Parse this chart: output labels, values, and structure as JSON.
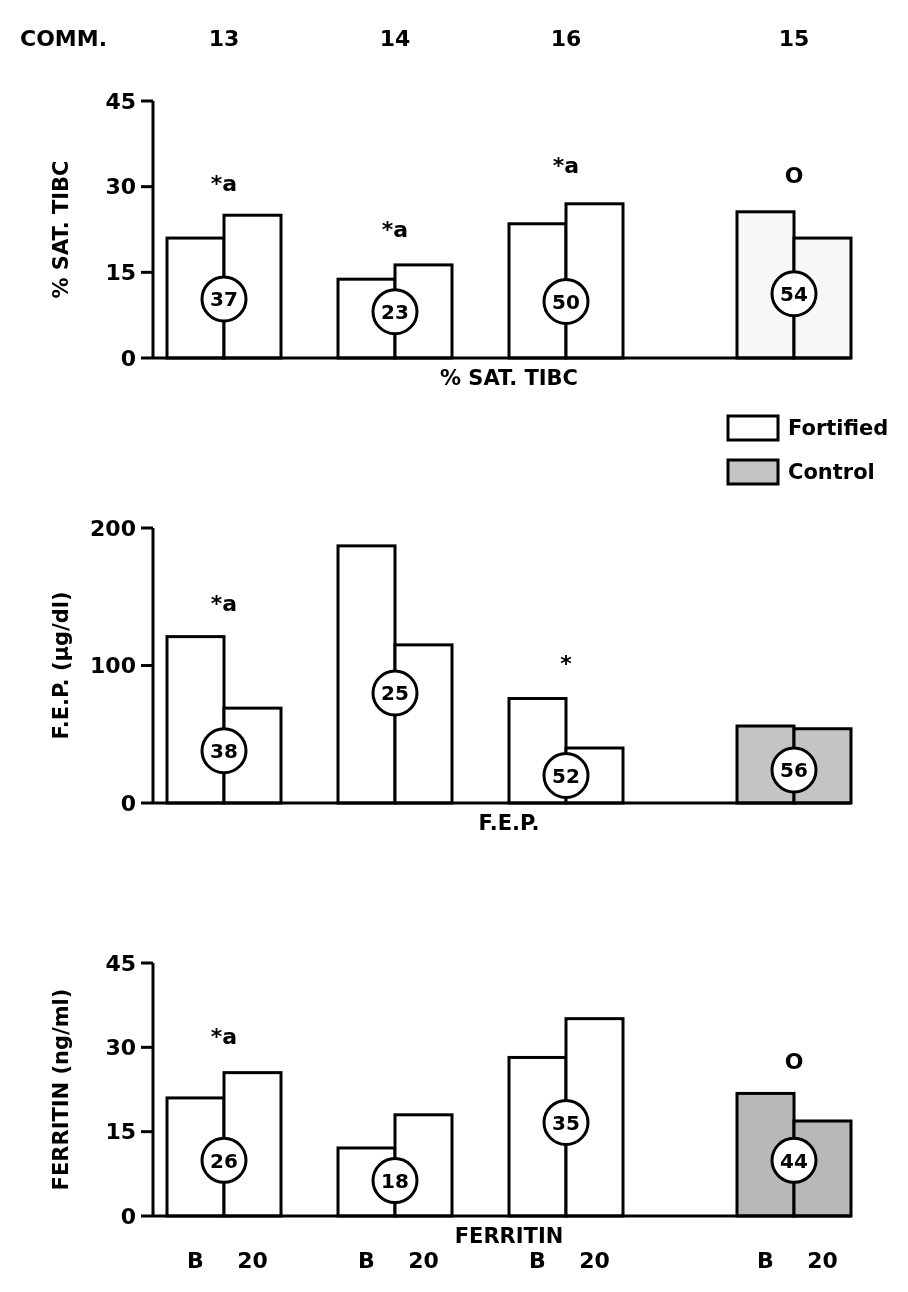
{
  "chart_data": [
    {
      "type": "bar",
      "xlabel": "% SAT. TIBC",
      "ylabel": "% SAT. TIBC",
      "categories": [
        null,
        null,
        null,
        null,
        null,
        null,
        null,
        null,
        null,
        null,
        null,
        null
      ],
      "ylim": [
        0,
        45
      ],
      "yticks": [
        0,
        15,
        30,
        45
      ],
      "tick_labels": "y",
      "legend": false,
      "series": [
        {
          "color": "#ffffff",
          "values": [
            21,
            25,
            null,
            13.8,
            16.3,
            null,
            23.5,
            27,
            null,
            null,
            null,
            null
          ]
        },
        {
          "color": "#f7f7f7",
          "values": [
            null,
            null,
            null,
            null,
            null,
            null,
            null,
            null,
            null,
            null,
            25.6,
            21
          ]
        }
      ],
      "annotations": [
        "COMM.",
        "13",
        "14",
        "16",
        "15",
        "37",
        "23",
        "50",
        "54",
        "*a",
        "*a",
        "*a",
        "O"
      ]
    },
    {
      "type": "bar",
      "xlabel": "F.E.P.",
      "ylabel": "F.E.P. (μg/dl)",
      "categories": [
        null,
        null,
        null,
        null,
        null,
        null,
        null,
        null,
        null,
        null,
        null,
        null
      ],
      "ylim": [
        0,
        200
      ],
      "yticks": [
        0,
        100,
        200
      ],
      "tick_labels": "y",
      "legend": "top right",
      "series": [
        {
          "name": "Fortified",
          "color": "#ffffff",
          "values": [
            121,
            69,
            null,
            187,
            115,
            null,
            76,
            40,
            null,
            null,
            null,
            null
          ]
        },
        {
          "name": "Control",
          "color": "#c4c4c4",
          "values": [
            null,
            null,
            null,
            null,
            null,
            null,
            null,
            null,
            null,
            null,
            56,
            54
          ]
        }
      ],
      "annotations": [
        "38",
        "25",
        "52",
        "56",
        "*a",
        "*"
      ]
    },
    {
      "type": "bar",
      "xlabel": "FERRITIN",
      "ylabel": "FERRITIN (ng/ml)",
      "categories": [
        "B",
        "20",
        null,
        "B",
        "20",
        null,
        "B",
        "20",
        null,
        null,
        "B",
        "20"
      ],
      "ylim": [
        0,
        45
      ],
      "yticks": [
        0,
        15,
        30,
        45
      ],
      "legend": false,
      "series": [
        {
          "color": "#ffffff",
          "values": [
            21,
            25.5,
            null,
            12.1,
            18,
            null,
            28.2,
            35.1,
            null,
            null,
            null,
            null
          ]
        },
        {
          "color": "#b8b8b8",
          "values": [
            null,
            null,
            null,
            null,
            null,
            null,
            null,
            null,
            null,
            null,
            21.8,
            16.9
          ]
        }
      ],
      "annotations": [
        "26",
        "18",
        "35",
        "44",
        "*a",
        "O"
      ]
    }
  ]
}
